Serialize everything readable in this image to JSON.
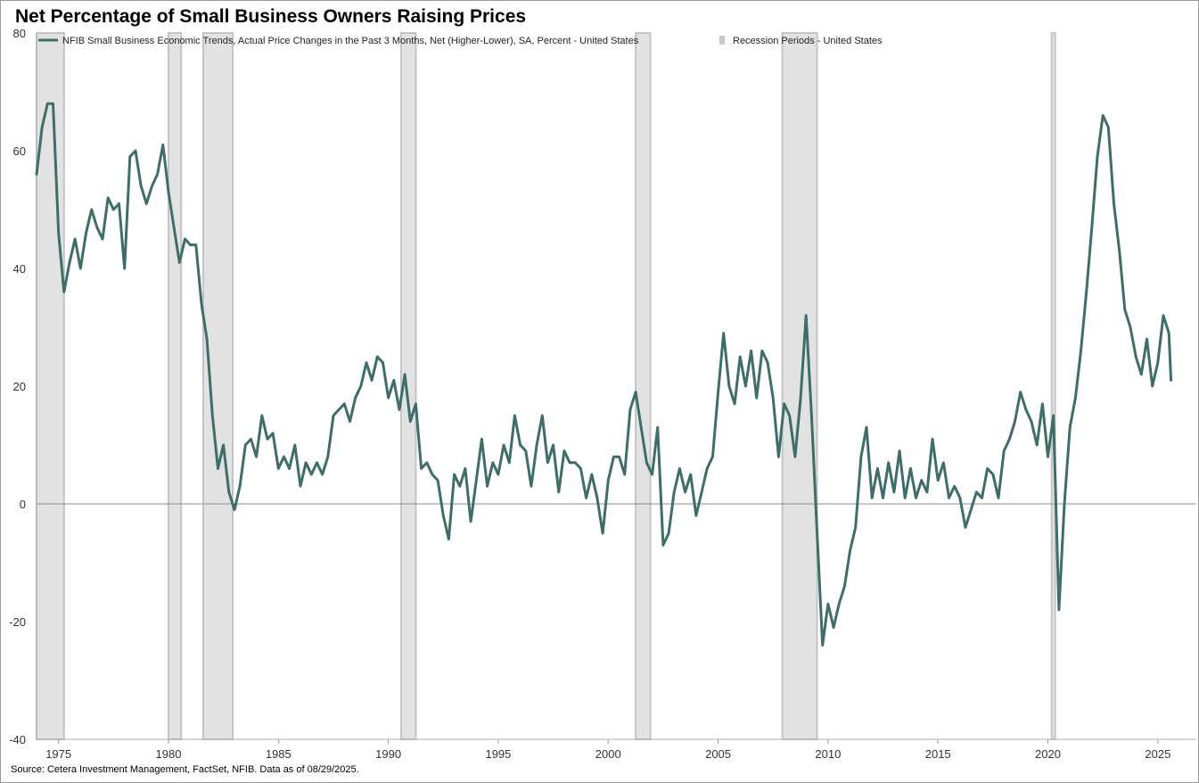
{
  "title": "Net Percentage of Small Business Owners Raising Prices",
  "source": "Source: Cetera Investment Management, FactSet, NFIB. Data as of 08/29/2025.",
  "colors": {
    "series": "#3f6e6a",
    "recession": "#e2e2e2",
    "recession_edge": "#c4c4c4",
    "zero_line": "#8c8c8c"
  },
  "chart_data": {
    "type": "line",
    "title": "Net Percentage of Small Business Owners Raising Prices",
    "xlabel": "",
    "ylabel": "",
    "xlim": [
      1974.0,
      2026.75
    ],
    "ylim": [
      -40,
      80
    ],
    "x_ticks": [
      1975,
      1980,
      1985,
      1990,
      1995,
      2000,
      2005,
      2010,
      2015,
      2020,
      2025
    ],
    "y_ticks": [
      80,
      60,
      40,
      20,
      0,
      -20,
      -40
    ],
    "legend_position": "top-left",
    "grid": false,
    "series": [
      {
        "name": "NFIB Small Business Economic Trends, Actual Price Changes in the Past 3 Months, Net (Higher-Lower), SA, Percent - United States",
        "points": [
          [
            1974.0,
            56
          ],
          [
            1974.25,
            64
          ],
          [
            1974.5,
            68
          ],
          [
            1974.75,
            68
          ],
          [
            1975.0,
            46
          ],
          [
            1975.25,
            36
          ],
          [
            1975.5,
            41
          ],
          [
            1975.75,
            45
          ],
          [
            1976.0,
            40
          ],
          [
            1976.25,
            46
          ],
          [
            1976.5,
            50
          ],
          [
            1976.75,
            47
          ],
          [
            1977.0,
            45
          ],
          [
            1977.25,
            52
          ],
          [
            1977.5,
            50
          ],
          [
            1977.75,
            51
          ],
          [
            1978.0,
            40
          ],
          [
            1978.25,
            59
          ],
          [
            1978.5,
            60
          ],
          [
            1978.75,
            54
          ],
          [
            1979.0,
            51
          ],
          [
            1979.25,
            54
          ],
          [
            1979.5,
            56
          ],
          [
            1979.75,
            61
          ],
          [
            1980.0,
            53
          ],
          [
            1980.25,
            47
          ],
          [
            1980.5,
            41
          ],
          [
            1980.75,
            45
          ],
          [
            1981.0,
            44
          ],
          [
            1981.25,
            44
          ],
          [
            1981.5,
            34
          ],
          [
            1981.75,
            28
          ],
          [
            1982.0,
            15
          ],
          [
            1982.25,
            6
          ],
          [
            1982.5,
            10
          ],
          [
            1982.75,
            2
          ],
          [
            1983.0,
            -1
          ],
          [
            1983.25,
            3
          ],
          [
            1983.5,
            10
          ],
          [
            1983.75,
            11
          ],
          [
            1984.0,
            8
          ],
          [
            1984.25,
            15
          ],
          [
            1984.5,
            11
          ],
          [
            1984.75,
            12
          ],
          [
            1985.0,
            6
          ],
          [
            1985.25,
            8
          ],
          [
            1985.5,
            6
          ],
          [
            1985.75,
            10
          ],
          [
            1986.0,
            3
          ],
          [
            1986.25,
            7
          ],
          [
            1986.5,
            5
          ],
          [
            1986.75,
            7
          ],
          [
            1987.0,
            5
          ],
          [
            1987.25,
            8
          ],
          [
            1987.5,
            15
          ],
          [
            1987.75,
            16
          ],
          [
            1988.0,
            17
          ],
          [
            1988.25,
            14
          ],
          [
            1988.5,
            18
          ],
          [
            1988.75,
            20
          ],
          [
            1989.0,
            24
          ],
          [
            1989.25,
            21
          ],
          [
            1989.5,
            25
          ],
          [
            1989.75,
            24
          ],
          [
            1990.0,
            18
          ],
          [
            1990.25,
            21
          ],
          [
            1990.5,
            16
          ],
          [
            1990.75,
            22
          ],
          [
            1991.0,
            14
          ],
          [
            1991.25,
            17
          ],
          [
            1991.5,
            6
          ],
          [
            1991.75,
            7
          ],
          [
            1992.0,
            5
          ],
          [
            1992.25,
            4
          ],
          [
            1992.5,
            -2
          ],
          [
            1992.75,
            -6
          ],
          [
            1993.0,
            5
          ],
          [
            1993.25,
            3
          ],
          [
            1993.5,
            6
          ],
          [
            1993.75,
            -3
          ],
          [
            1994.0,
            4
          ],
          [
            1994.25,
            11
          ],
          [
            1994.5,
            3
          ],
          [
            1994.75,
            7
          ],
          [
            1995.0,
            5
          ],
          [
            1995.25,
            10
          ],
          [
            1995.5,
            7
          ],
          [
            1995.75,
            15
          ],
          [
            1996.0,
            10
          ],
          [
            1996.25,
            9
          ],
          [
            1996.5,
            3
          ],
          [
            1996.75,
            10
          ],
          [
            1997.0,
            15
          ],
          [
            1997.25,
            7
          ],
          [
            1997.5,
            10
          ],
          [
            1997.75,
            2
          ],
          [
            1998.0,
            9
          ],
          [
            1998.25,
            7
          ],
          [
            1998.5,
            7
          ],
          [
            1998.75,
            6
          ],
          [
            1999.0,
            1
          ],
          [
            1999.25,
            5
          ],
          [
            1999.5,
            1
          ],
          [
            1999.75,
            -5
          ],
          [
            2000.0,
            4
          ],
          [
            2000.25,
            8
          ],
          [
            2000.5,
            8
          ],
          [
            2000.75,
            5
          ],
          [
            2001.0,
            16
          ],
          [
            2001.25,
            19
          ],
          [
            2001.5,
            13
          ],
          [
            2001.75,
            7
          ],
          [
            2002.0,
            5
          ],
          [
            2002.25,
            13
          ],
          [
            2002.5,
            -7
          ],
          [
            2002.75,
            -5
          ],
          [
            2003.0,
            2
          ],
          [
            2003.25,
            6
          ],
          [
            2003.5,
            2
          ],
          [
            2003.75,
            5
          ],
          [
            2004.0,
            -2
          ],
          [
            2004.25,
            2
          ],
          [
            2004.5,
            6
          ],
          [
            2004.75,
            8
          ],
          [
            2005.0,
            19
          ],
          [
            2005.25,
            29
          ],
          [
            2005.5,
            20
          ],
          [
            2005.75,
            17
          ],
          [
            2006.0,
            25
          ],
          [
            2006.25,
            20
          ],
          [
            2006.5,
            26
          ],
          [
            2006.75,
            18
          ],
          [
            2007.0,
            26
          ],
          [
            2007.25,
            24
          ],
          [
            2007.5,
            18
          ],
          [
            2007.75,
            8
          ],
          [
            2008.0,
            17
          ],
          [
            2008.25,
            15
          ],
          [
            2008.5,
            8
          ],
          [
            2008.75,
            18
          ],
          [
            2009.0,
            32
          ],
          [
            2009.25,
            15
          ],
          [
            2009.5,
            -5
          ],
          [
            2009.75,
            -24
          ],
          [
            2010.0,
            -17
          ],
          [
            2010.25,
            -21
          ],
          [
            2010.5,
            -17
          ],
          [
            2010.75,
            -14
          ],
          [
            2011.0,
            -8
          ],
          [
            2011.25,
            -4
          ],
          [
            2011.5,
            8
          ],
          [
            2011.75,
            13
          ],
          [
            2012.0,
            1
          ],
          [
            2012.25,
            6
          ],
          [
            2012.5,
            1
          ],
          [
            2012.75,
            7
          ],
          [
            2013.0,
            2
          ],
          [
            2013.25,
            9
          ],
          [
            2013.5,
            1
          ],
          [
            2013.75,
            6
          ],
          [
            2014.0,
            1
          ],
          [
            2014.25,
            4
          ],
          [
            2014.5,
            2
          ],
          [
            2014.75,
            11
          ],
          [
            2015.0,
            4
          ],
          [
            2015.25,
            7
          ],
          [
            2015.5,
            1
          ],
          [
            2015.75,
            3
          ],
          [
            2016.0,
            1
          ],
          [
            2016.25,
            -4
          ],
          [
            2016.5,
            -1
          ],
          [
            2016.75,
            2
          ],
          [
            2017.0,
            1
          ],
          [
            2017.25,
            6
          ],
          [
            2017.5,
            5
          ],
          [
            2017.75,
            1
          ],
          [
            2018.0,
            9
          ],
          [
            2018.25,
            11
          ],
          [
            2018.5,
            14
          ],
          [
            2018.75,
            19
          ],
          [
            2019.0,
            16
          ],
          [
            2019.25,
            14
          ],
          [
            2019.5,
            10
          ],
          [
            2019.75,
            17
          ],
          [
            2020.0,
            8
          ],
          [
            2020.25,
            15
          ],
          [
            2020.5,
            -18
          ],
          [
            2020.75,
            0
          ],
          [
            2021.0,
            13
          ],
          [
            2021.25,
            18
          ],
          [
            2021.5,
            26
          ],
          [
            2021.75,
            36
          ],
          [
            2022.0,
            47
          ],
          [
            2022.25,
            59
          ],
          [
            2022.5,
            66
          ],
          [
            2022.75,
            64
          ],
          [
            2023.0,
            51
          ],
          [
            2023.25,
            43
          ],
          [
            2023.5,
            33
          ],
          [
            2023.75,
            30
          ],
          [
            2024.0,
            25
          ],
          [
            2024.25,
            22
          ],
          [
            2024.5,
            28
          ],
          [
            2024.75,
            20
          ],
          [
            2025.0,
            24
          ],
          [
            2025.25,
            32
          ],
          [
            2025.5,
            29
          ],
          [
            2025.6,
            21
          ]
        ]
      }
    ],
    "recessions": {
      "name": "Recession Periods - United States",
      "periods": [
        [
          1974.0,
          1975.25
        ],
        [
          1980.0,
          1980.58
        ],
        [
          1981.58,
          1982.92
        ],
        [
          1990.58,
          1991.25
        ],
        [
          2001.25,
          2001.92
        ],
        [
          2007.92,
          2009.5
        ],
        [
          2020.17,
          2020.33
        ]
      ]
    }
  }
}
